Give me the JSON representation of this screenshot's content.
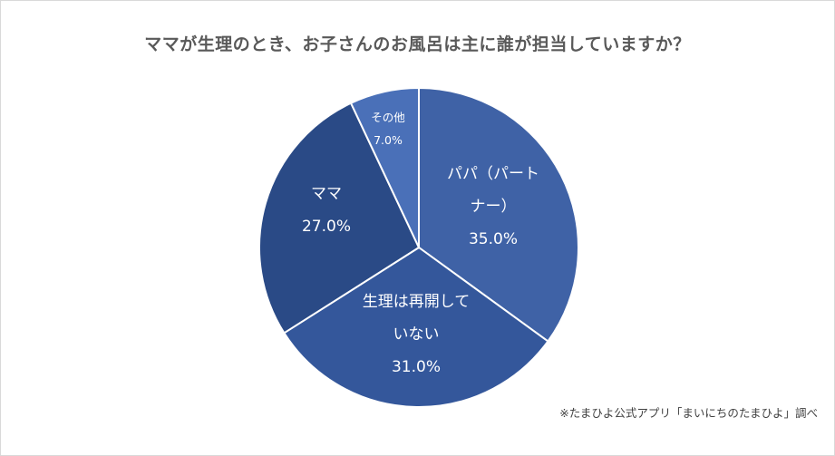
{
  "chart_data": {
    "type": "pie",
    "title": "ママが生理のとき、お子さんのお風呂は主に誰が担当していますか？",
    "slices": [
      {
        "label": "パパ（パートナー）",
        "label_lines": [
          "パパ（パート",
          "ナー）"
        ],
        "value": 35.0,
        "value_label": "35.0%",
        "color": "#3f62a6"
      },
      {
        "label": "生理は再開していない",
        "label_lines": [
          "生理は再開して",
          "いない"
        ],
        "value": 31.0,
        "value_label": "31.0%",
        "color": "#34579b"
      },
      {
        "label": "ママ",
        "label_lines": [
          "ママ"
        ],
        "value": 27.0,
        "value_label": "27.0%",
        "color": "#2a4a86"
      },
      {
        "label": "その他",
        "label_lines": [
          "その他"
        ],
        "value": 7.0,
        "value_label": "7.0%",
        "color": "#4a70b8"
      }
    ],
    "start_angle_deg": 0,
    "direction": "clockwise",
    "slice_border_color": "#ffffff"
  },
  "source_note": "※たまひよ公式アプリ「まいにちのたまひよ」調べ"
}
